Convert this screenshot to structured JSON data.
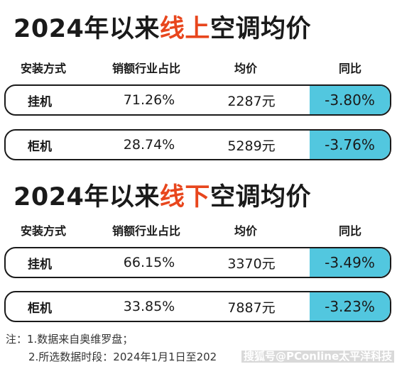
{
  "chart_data": [
    {
      "type": "table",
      "title_prefix": "2024年以来",
      "title_highlight": "线上",
      "title_suffix": "空调均价",
      "columns": [
        "安装方式",
        "销额行业占比",
        "均价",
        "同比"
      ],
      "rows": [
        {
          "type": "挂机",
          "share": "71.26%",
          "price": "2287元",
          "yoy": "-3.80%"
        },
        {
          "type": "柜机",
          "share": "28.74%",
          "price": "5289元",
          "yoy": "-3.76%"
        }
      ]
    },
    {
      "type": "table",
      "title_prefix": "2024年以来",
      "title_highlight": "线下",
      "title_suffix": "空调均价",
      "columns": [
        "安装方式",
        "销额行业占比",
        "均价",
        "同比"
      ],
      "rows": [
        {
          "type": "挂机",
          "share": "66.15%",
          "price": "3370元",
          "yoy": "-3.49%"
        },
        {
          "type": "柜机",
          "share": "33.85%",
          "price": "7887元",
          "yoy": "-3.23%"
        }
      ]
    }
  ],
  "notes": {
    "line1": "注：1.数据来自奥维罗盘；",
    "line2": "2.所选数据时段：2024年1月1日至202"
  },
  "watermark": "搜狐号@PConline太平洋科技",
  "colors": {
    "highlight": "#e8461d",
    "yoy_fill": "#52c7df",
    "border": "#1a1a1a"
  }
}
